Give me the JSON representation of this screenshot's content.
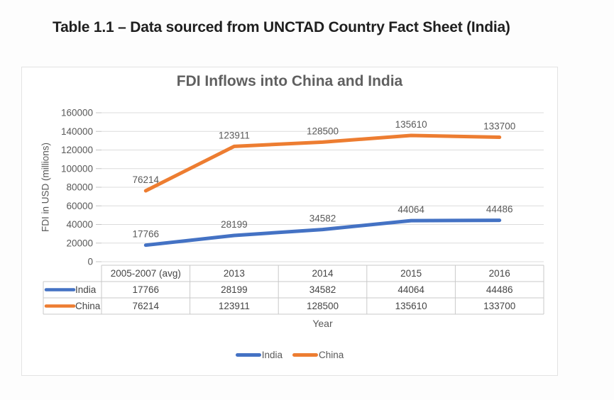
{
  "page": {
    "title": "Table 1.1 – Data sourced from UNCTAD Country Fact Sheet (India)"
  },
  "chart_data": {
    "type": "line",
    "title": "FDI Inflows into China and India",
    "xlabel": "Year",
    "ylabel": "FDI in USD (millions)",
    "categories": [
      "2005-2007 (avg)",
      "2013",
      "2014",
      "2015",
      "2016"
    ],
    "series": [
      {
        "name": "India",
        "color": "#4472C4",
        "values": [
          17766,
          28199,
          34582,
          44064,
          44486
        ]
      },
      {
        "name": "China",
        "color": "#ED7D31",
        "values": [
          76214,
          123911,
          128500,
          135610,
          133700
        ]
      }
    ],
    "ylim": [
      0,
      160000
    ],
    "yticks": [
      160000,
      140000,
      120000,
      100000,
      80000,
      60000,
      40000,
      20000,
      0
    ],
    "grid": true,
    "data_labels_shown": true,
    "data_table_shown": true,
    "legend_position": "bottom",
    "colors": {
      "gridline": "#dcdcdc",
      "table_border": "#c9c9c9",
      "text": "#595959"
    }
  }
}
